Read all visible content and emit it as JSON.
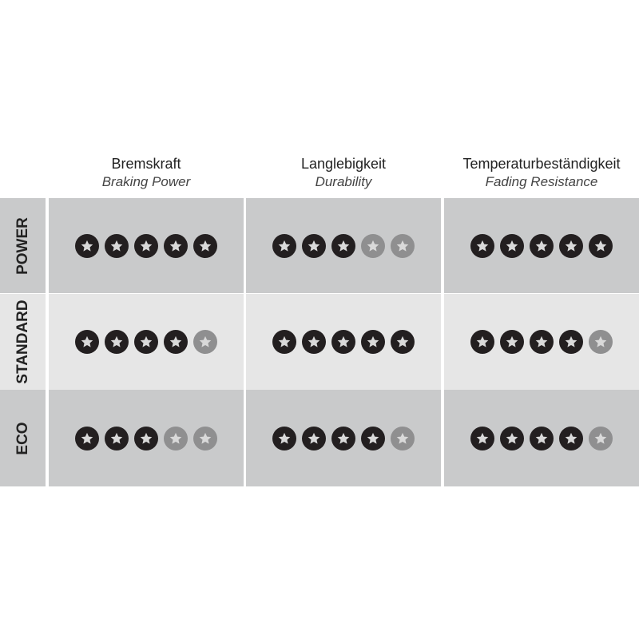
{
  "columns": [
    {
      "title": "Bremskraft",
      "subtitle": "Braking Power"
    },
    {
      "title": "Langlebigkeit",
      "subtitle": "Durability"
    },
    {
      "title": "Temperaturbeständigkeit",
      "subtitle": "Fading Resistance"
    }
  ],
  "rows": [
    {
      "label": "POWER",
      "ratings": [
        5,
        3,
        5
      ]
    },
    {
      "label": "STANDARD",
      "ratings": [
        4,
        5,
        4
      ]
    },
    {
      "label": "ECO",
      "ratings": [
        3,
        4,
        4
      ]
    }
  ],
  "max_rating": 5,
  "colors": {
    "row_dark": "#c9cacb",
    "row_light": "#e6e6e6",
    "star_filled": "#231f20",
    "star_empty": "#8f8f90",
    "star_glyph": "#d9d9d9"
  }
}
